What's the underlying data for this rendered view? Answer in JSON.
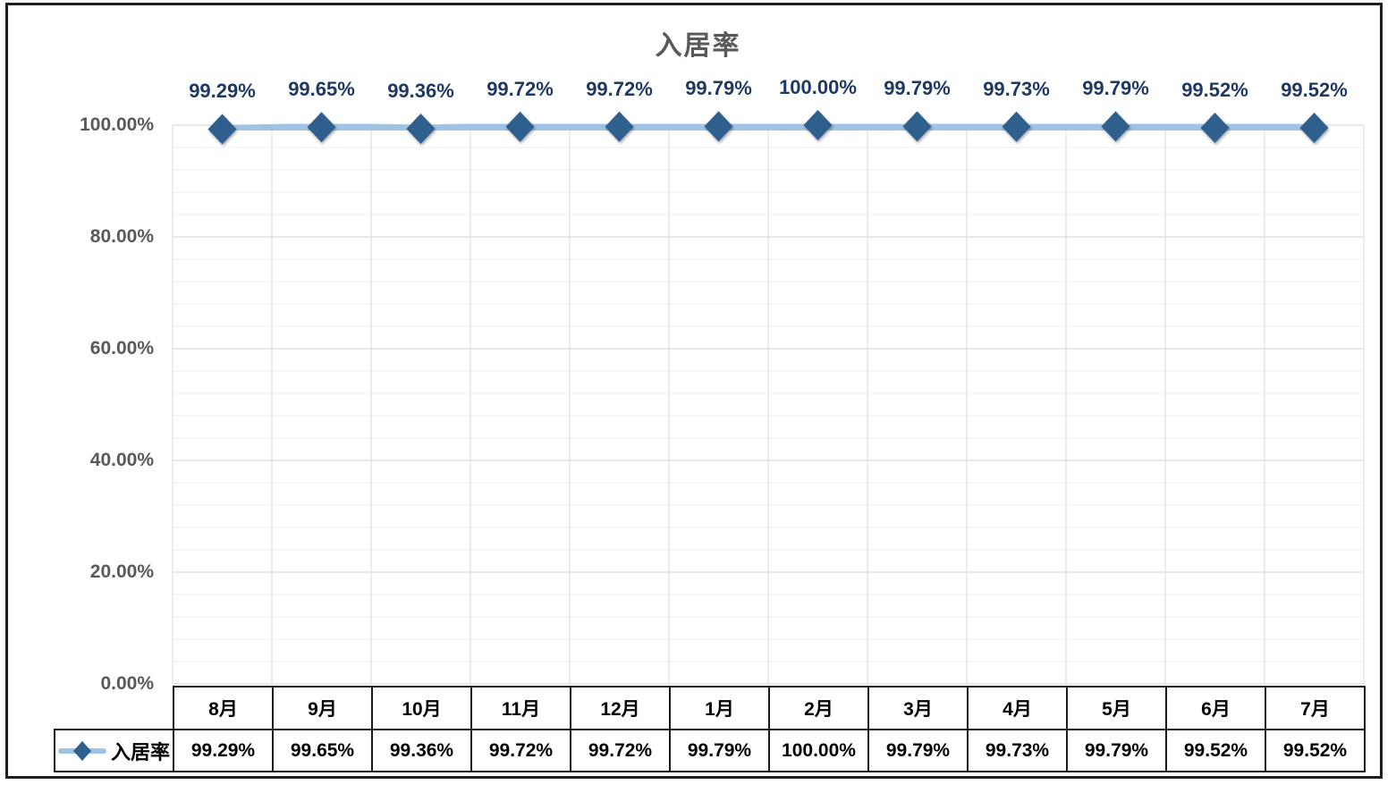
{
  "chart_data": {
    "type": "line",
    "title": "入居率",
    "categories": [
      "8月",
      "9月",
      "10月",
      "11月",
      "12月",
      "1月",
      "2月",
      "3月",
      "4月",
      "5月",
      "6月",
      "7月"
    ],
    "series": [
      {
        "name": "入居率",
        "values": [
          99.29,
          99.65,
          99.36,
          99.72,
          99.72,
          99.79,
          100.0,
          99.79,
          99.73,
          99.79,
          99.52,
          99.52
        ]
      }
    ],
    "display_values": [
      "99.29%",
      "99.65%",
      "99.36%",
      "99.72%",
      "99.72%",
      "99.79%",
      "100.00%",
      "99.79%",
      "99.73%",
      "99.79%",
      "99.52%",
      "99.52%"
    ],
    "y_ticks": [
      "100.00%",
      "80.00%",
      "60.00%",
      "40.00%",
      "20.00%",
      "0.00%"
    ],
    "ylim": [
      0,
      100
    ],
    "y_major_step": 20,
    "y_minor_step": 4,
    "grid": true,
    "legend_label": "入居率",
    "legend_position": "table-row-header-bottom-left",
    "colors": {
      "line": "#9DC3E6",
      "marker": "#2E5F8D",
      "data_label": "#1F3864",
      "title": "#595959",
      "axis_label": "#595959",
      "gridline_major": "#D2D2D2",
      "gridline_minor": "#EDEDED",
      "gridline_vertical": "#D9D9D9",
      "table_border": "#1A1A1A"
    }
  }
}
